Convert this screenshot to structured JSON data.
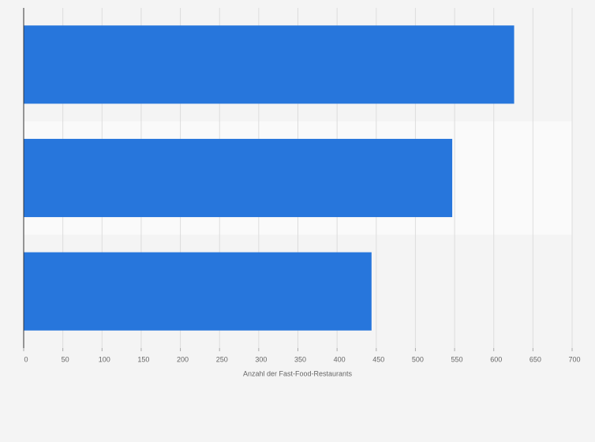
{
  "chart_data": {
    "type": "bar",
    "orientation": "horizontal",
    "x_label": "Anzahl der Fast-Food-Restaurants",
    "categories": [
      null,
      null,
      null
    ],
    "values": [
      626,
      547,
      444
    ],
    "color": "#2776dc",
    "xlim": [
      0,
      700
    ],
    "xticks": [
      0,
      50,
      100,
      150,
      200,
      250,
      300,
      350,
      400,
      450,
      500,
      550,
      600,
      650,
      700
    ],
    "grid": true
  }
}
